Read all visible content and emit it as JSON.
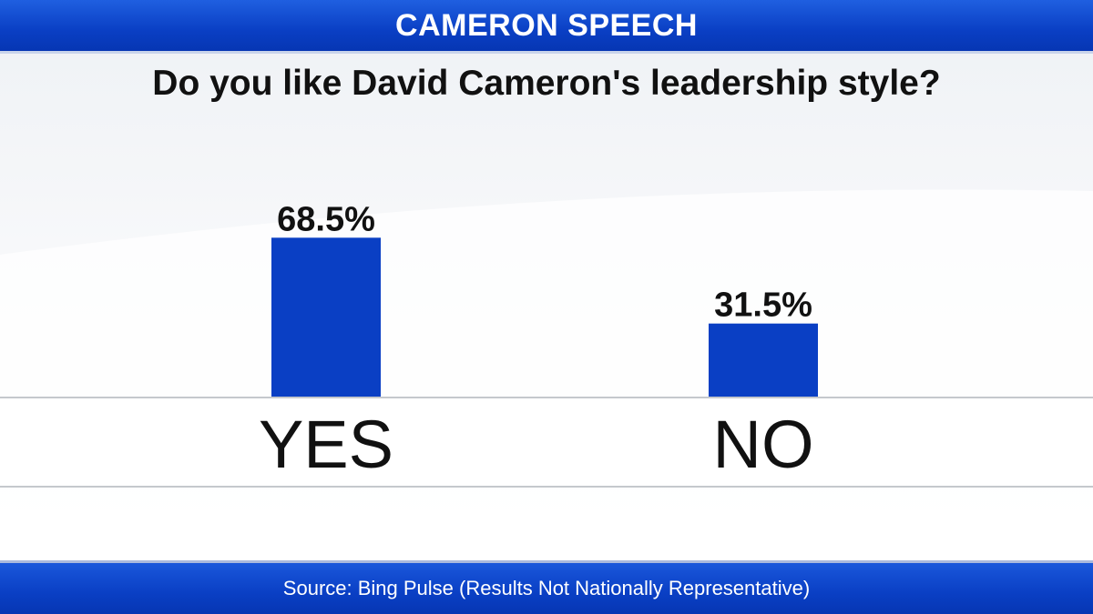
{
  "header": {
    "title": "CAMERON SPEECH"
  },
  "footer": {
    "source": "Source: Bing Pulse (Results Not Nationally Representative)"
  },
  "colors": {
    "accent": "#0a3fc4",
    "bar": "#0a3fc4",
    "text": "#111111"
  },
  "chart_data": {
    "type": "bar",
    "title": "Do you like David Cameron's leadership style?",
    "categories": [
      "YES",
      "NO"
    ],
    "values": [
      68.5,
      31.5
    ],
    "value_labels": [
      "68.5%",
      "31.5%"
    ],
    "xlabel": "",
    "ylabel": "",
    "ylim": [
      0,
      100
    ],
    "grid": false,
    "legend": "none"
  }
}
